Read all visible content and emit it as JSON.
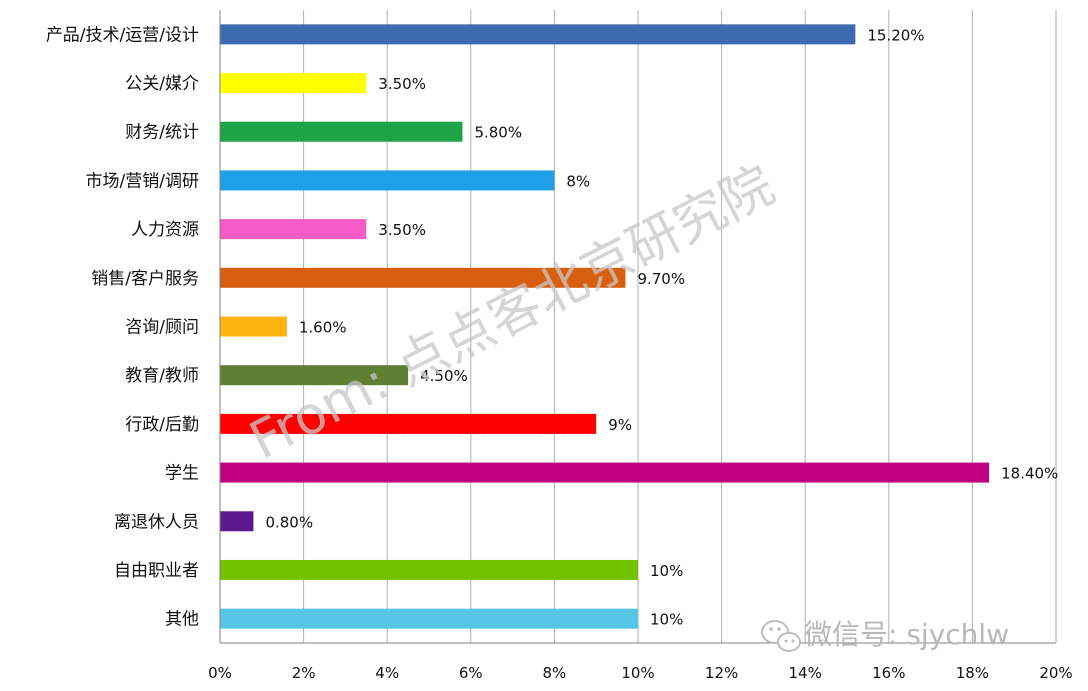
{
  "chart_data": {
    "type": "bar",
    "orientation": "horizontal",
    "categories": [
      "产品/技术/运营/设计",
      "公关/媒介",
      "财务/统计",
      "市场/营销/调研",
      "人力资源",
      "销售/客户服务",
      "咨询/顾问",
      "教育/教师",
      "行政/后勤",
      "学生",
      "离退休人员",
      "自由职业者",
      "其他"
    ],
    "values": [
      15.2,
      3.5,
      5.8,
      8,
      3.5,
      9.7,
      1.6,
      4.5,
      9,
      18.4,
      0.8,
      10,
      10
    ],
    "value_labels": [
      "15.20%",
      "3.50%",
      "5.80%",
      "8%",
      "3.50%",
      "9.70%",
      "1.60%",
      "4.50%",
      "9%",
      "18.40%",
      "0.80%",
      "10%",
      "10%"
    ],
    "colors": [
      "#3D6AB0",
      "#FFFF00",
      "#1DA446",
      "#1F9FE8",
      "#F75BC8",
      "#D85E10",
      "#FFB310",
      "#5F7F32",
      "#FF0000",
      "#C0007F",
      "#5E1A8C",
      "#73C300",
      "#55C6E5"
    ],
    "x_ticks": [
      "0%",
      "2%",
      "4%",
      "6%",
      "8%",
      "10%",
      "12%",
      "14%",
      "16%",
      "18%",
      "20%"
    ],
    "xlim": [
      0,
      20
    ],
    "grid": true,
    "legend": "none"
  },
  "watermark": "From: 点点客北京研究院",
  "wechat": {
    "icon": "wechat-icon",
    "text": "微信号: sjychlw"
  }
}
